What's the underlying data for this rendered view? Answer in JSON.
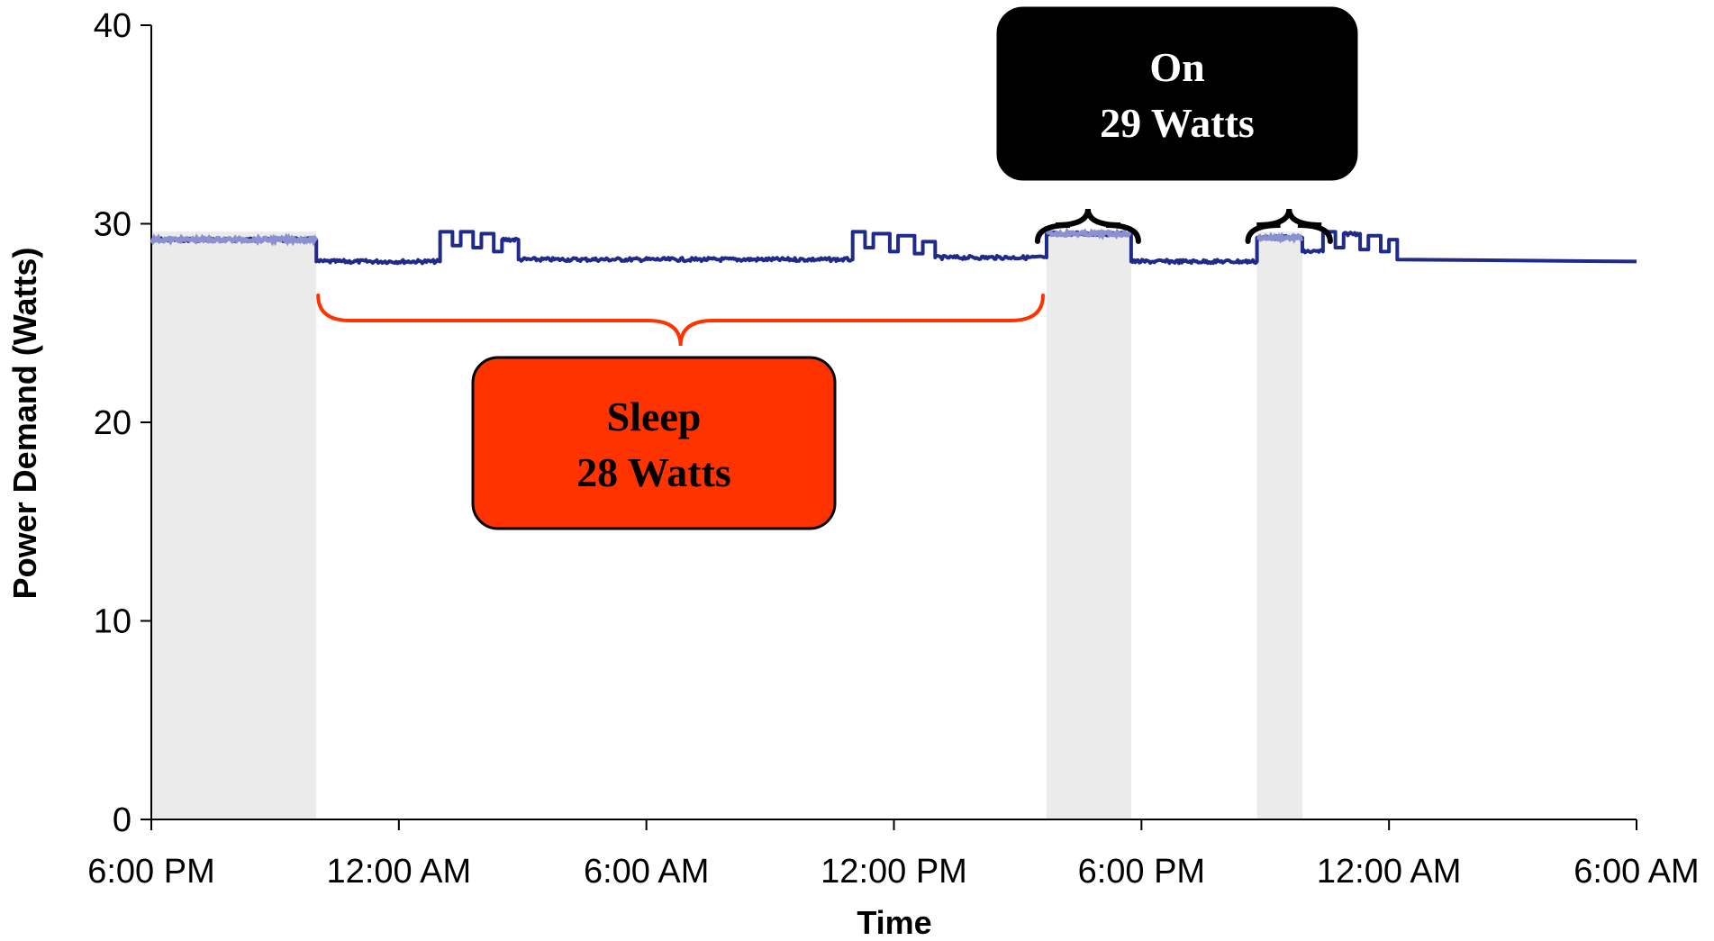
{
  "chart_data": {
    "type": "line",
    "title": "",
    "xlabel": "Time",
    "ylabel": "Power Demand (Watts)",
    "ylim": [
      0,
      40
    ],
    "yticks": [
      0,
      10,
      20,
      30,
      40
    ],
    "x_unit": "hours from 6:00 PM",
    "xlim": [
      0,
      36
    ],
    "xticks": [
      {
        "x": 0,
        "label": "6:00 PM"
      },
      {
        "x": 6,
        "label": "12:00 AM"
      },
      {
        "x": 12,
        "label": "6:00 AM"
      },
      {
        "x": 18,
        "label": "12:00 PM"
      },
      {
        "x": 24,
        "label": "6:00 PM"
      },
      {
        "x": 30,
        "label": "12:00 AM"
      },
      {
        "x": 36,
        "label": "6:00 AM"
      }
    ],
    "on_periods": [
      [
        0,
        4
      ],
      [
        21.7,
        23.75
      ],
      [
        26.8,
        27.9
      ]
    ],
    "series": [
      {
        "values": [
          [
            0,
            29.2
          ],
          [
            4,
            29.2
          ],
          [
            4,
            28.1
          ],
          [
            7,
            28.1
          ],
          [
            7,
            29.6
          ],
          [
            7.3,
            29.6
          ],
          [
            7.3,
            28.9
          ],
          [
            7.5,
            28.9
          ],
          [
            7.5,
            29.6
          ],
          [
            7.8,
            29.6
          ],
          [
            7.8,
            28.8
          ],
          [
            8,
            28.8
          ],
          [
            8,
            29.5
          ],
          [
            8.3,
            29.5
          ],
          [
            8.3,
            28.6
          ],
          [
            8.5,
            28.6
          ],
          [
            8.5,
            29.2
          ],
          [
            8.9,
            29.2
          ],
          [
            8.9,
            28.2
          ],
          [
            17,
            28.2
          ],
          [
            17,
            29.6
          ],
          [
            17.3,
            29.6
          ],
          [
            17.3,
            28.8
          ],
          [
            17.5,
            28.8
          ],
          [
            17.5,
            29.5
          ],
          [
            17.9,
            29.5
          ],
          [
            17.9,
            28.6
          ],
          [
            18.1,
            28.6
          ],
          [
            18.1,
            29.4
          ],
          [
            18.5,
            29.4
          ],
          [
            18.5,
            28.5
          ],
          [
            18.7,
            28.5
          ],
          [
            18.7,
            29.1
          ],
          [
            19,
            29.1
          ],
          [
            19,
            28.3
          ],
          [
            21.7,
            28.3
          ],
          [
            21.7,
            29.5
          ],
          [
            23.75,
            29.5
          ],
          [
            23.75,
            28.1
          ],
          [
            26.8,
            28.1
          ],
          [
            26.8,
            29.3
          ],
          [
            27.9,
            29.3
          ],
          [
            27.9,
            28.6
          ],
          [
            28.4,
            28.6
          ],
          [
            28.4,
            29.6
          ],
          [
            28.7,
            29.6
          ],
          [
            28.7,
            28.8
          ],
          [
            28.9,
            28.8
          ],
          [
            28.9,
            29.5
          ],
          [
            29.3,
            29.5
          ],
          [
            29.3,
            28.7
          ],
          [
            29.5,
            28.7
          ],
          [
            29.5,
            29.4
          ],
          [
            29.8,
            29.4
          ],
          [
            29.8,
            28.6
          ],
          [
            30,
            28.6
          ],
          [
            30,
            29.2
          ],
          [
            30.2,
            29.2
          ],
          [
            30.2,
            28.2
          ],
          [
            36,
            28.1
          ]
        ]
      }
    ],
    "annotations": [
      {
        "name": "sleep",
        "line1": "Sleep",
        "line2": "28 Watts",
        "brace_from": 4,
        "brace_to": 21.7,
        "color": "#ff3300"
      },
      {
        "name": "on",
        "line1": "On",
        "line2": "29 Watts",
        "brace_ranges": [
          [
            21.7,
            23.75
          ],
          [
            26.8,
            28.4
          ]
        ],
        "color": "#000000"
      }
    ],
    "colors": {
      "line": "#1f2a8a",
      "line_on": "#8a90d0",
      "shade": "#ebebeb",
      "sleep_box": "#ff3300",
      "on_box": "#000000"
    },
    "grid": false
  }
}
